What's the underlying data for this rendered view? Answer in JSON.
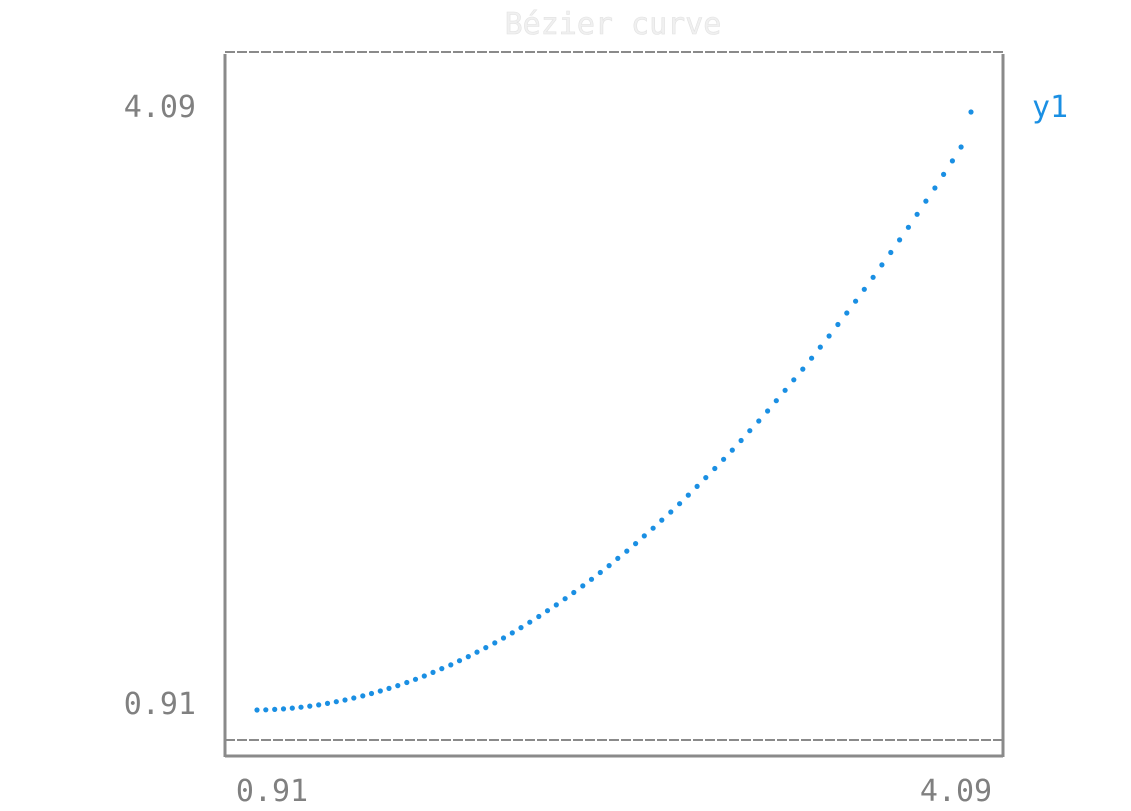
{
  "chart_data": {
    "type": "scatter",
    "title": "Bézier curve",
    "xlabel": "",
    "ylabel": "",
    "xlim": [
      0.91,
      4.09
    ],
    "ylim": [
      0.91,
      4.09
    ],
    "x_ticks": [
      "0.91",
      "4.09"
    ],
    "y_ticks": [
      "0.91",
      "4.09"
    ],
    "grid": false,
    "legend": "right",
    "colors": {
      "series": "#1a8fe3",
      "frame": "#8a8a8a",
      "ticks": "#808080"
    },
    "series": [
      {
        "name": "y1",
        "x": [
          0.91,
          0.949,
          0.989,
          1.028,
          1.067,
          1.106,
          1.145,
          1.185,
          1.224,
          1.263,
          1.302,
          1.341,
          1.381,
          1.42,
          1.459,
          1.498,
          1.537,
          1.577,
          1.616,
          1.655,
          1.694,
          1.733,
          1.773,
          1.812,
          1.851,
          1.89,
          1.929,
          1.969,
          2.008,
          2.047,
          2.086,
          2.125,
          2.165,
          2.204,
          2.243,
          2.282,
          2.321,
          2.361,
          2.4,
          2.439,
          2.478,
          2.517,
          2.557,
          2.596,
          2.635,
          2.674,
          2.713,
          2.753,
          2.792,
          2.831,
          2.87,
          2.909,
          2.949,
          2.988,
          3.027,
          3.066,
          3.105,
          3.145,
          3.184,
          3.223,
          3.262,
          3.301,
          3.341,
          3.38,
          3.419,
          3.458,
          3.497,
          3.537,
          3.576,
          3.615,
          3.654,
          3.693,
          3.733,
          3.772,
          3.811,
          3.85,
          3.889,
          3.929,
          3.968,
          4.007,
          4.046,
          4.09
        ],
        "y": [
          0.91,
          0.911,
          0.913,
          0.916,
          0.92,
          0.925,
          0.931,
          0.937,
          0.945,
          0.954,
          0.963,
          0.974,
          0.985,
          0.998,
          1.011,
          1.025,
          1.04,
          1.056,
          1.073,
          1.091,
          1.11,
          1.13,
          1.15,
          1.172,
          1.194,
          1.218,
          1.242,
          1.267,
          1.293,
          1.32,
          1.348,
          1.377,
          1.407,
          1.438,
          1.469,
          1.502,
          1.535,
          1.57,
          1.605,
          1.641,
          1.678,
          1.716,
          1.755,
          1.795,
          1.836,
          1.877,
          1.92,
          1.963,
          2.007,
          2.053,
          2.099,
          2.146,
          2.194,
          2.243,
          2.292,
          2.343,
          2.395,
          2.447,
          2.5,
          2.555,
          2.61,
          2.666,
          2.723,
          2.781,
          2.84,
          2.899,
          2.96,
          3.021,
          3.084,
          3.147,
          3.211,
          3.277,
          3.343,
          3.41,
          3.477,
          3.546,
          3.616,
          3.686,
          3.758,
          3.83,
          3.904,
          4.09
        ]
      }
    ]
  }
}
